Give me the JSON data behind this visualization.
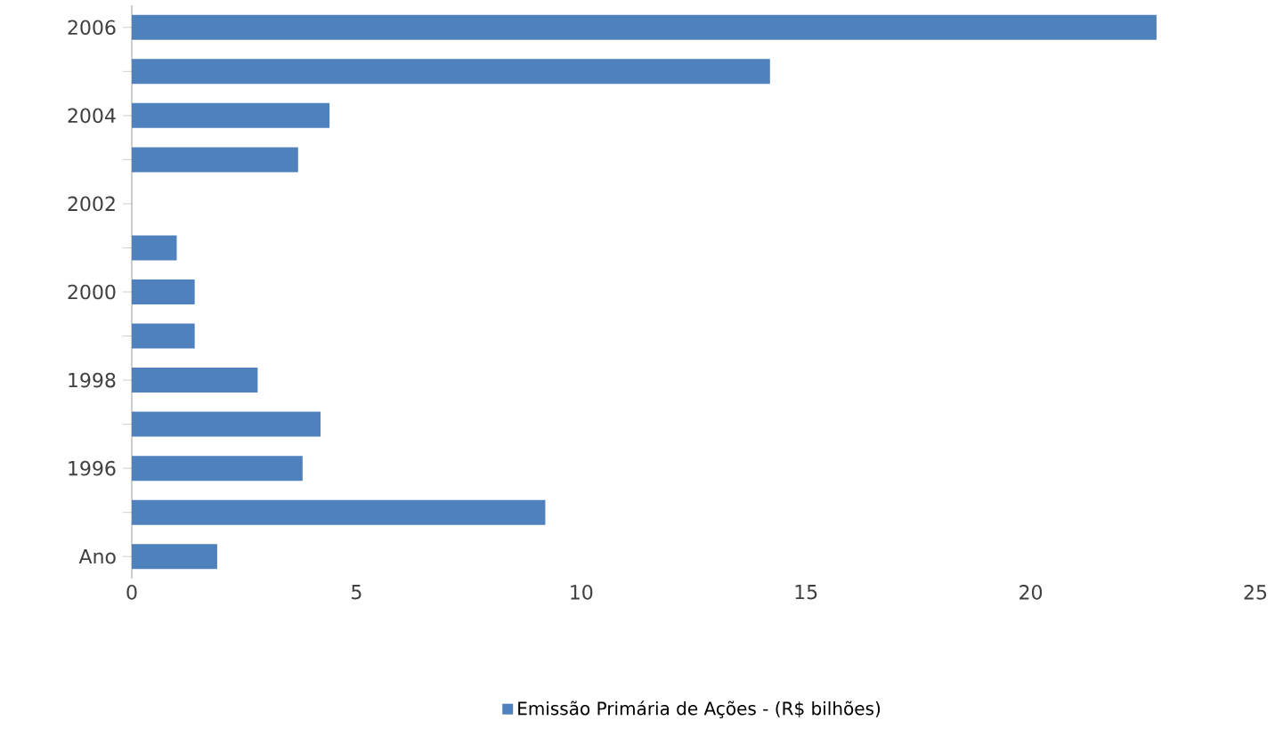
{
  "chart_data": {
    "type": "bar",
    "orientation": "horizontal",
    "categories": [
      "2006",
      null,
      "2004",
      null,
      "2002",
      null,
      "2000",
      null,
      "1998",
      null,
      "1996",
      null,
      "Ano"
    ],
    "series": [
      {
        "name": "Emissão Primária de Ações - (R$ bilhões)",
        "color": "#4f81bd",
        "values": [
          22.8,
          14.2,
          4.4,
          3.7,
          0,
          1.0,
          1.4,
          1.4,
          2.8,
          4.2,
          3.8,
          9.2,
          1.9
        ]
      }
    ],
    "xlim": [
      0,
      25
    ],
    "xticks": [
      0,
      5,
      10,
      15,
      20,
      25
    ],
    "grid": false,
    "legend": "bottom"
  }
}
